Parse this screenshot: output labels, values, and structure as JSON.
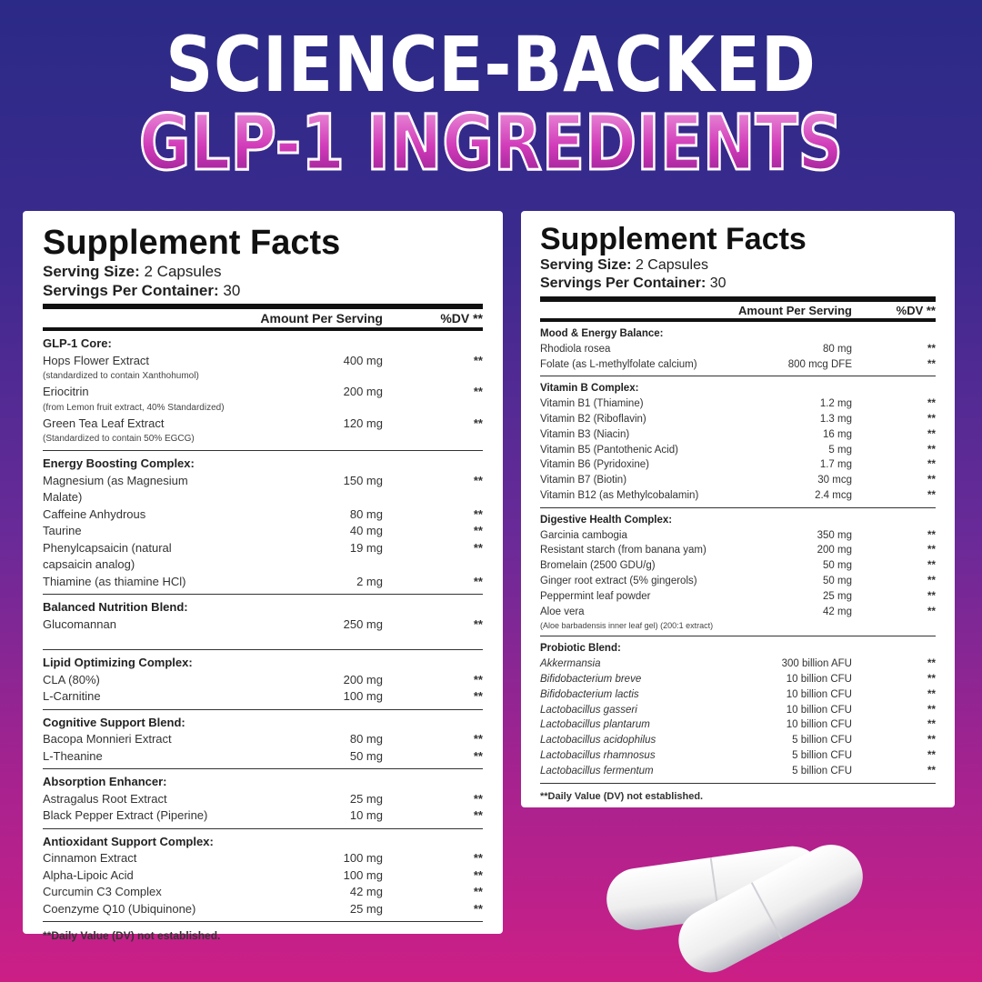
{
  "headline": {
    "line1": "SCIENCE-BACKED",
    "line2": "GLP-1 INGREDIENTS"
  },
  "colors": {
    "bg_top": "#2b2a86",
    "bg_bottom": "#cc1f86",
    "accent": "#d03ab8"
  },
  "panels": [
    {
      "title": "Supplement Facts",
      "serving_size_label": "Serving Size:",
      "serving_size": "2 Capsules",
      "servings_label": "Servings Per Container:",
      "servings": "30",
      "amount_header": "Amount Per Serving",
      "dv_header": "%DV **",
      "sections": [
        {
          "name": "GLP-1 Core:",
          "items": [
            {
              "name": "Hops Flower Extract",
              "amount": "400 mg",
              "dv": "**",
              "sub": "(standardized to contain Xanthohumol)"
            },
            {
              "name": "Eriocitrin",
              "amount": "200 mg",
              "dv": "**",
              "sub": "(from Lemon fruit extract, 40% Standardized)"
            },
            {
              "name": "Green Tea Leaf Extract",
              "amount": "120 mg",
              "dv": "**",
              "sub": "(Standardized to contain 50% EGCG)"
            }
          ]
        },
        {
          "name": "Energy Boosting Complex:",
          "items": [
            {
              "name": "Magnesium (as Magnesium Malate)",
              "amount": "150 mg",
              "dv": "**"
            },
            {
              "name": "Caffeine Anhydrous",
              "amount": "80 mg",
              "dv": "**"
            },
            {
              "name": "Taurine",
              "amount": "40 mg",
              "dv": "**"
            },
            {
              "name": "Phenylcapsaicin (natural capsaicin analog)",
              "amount": "19 mg",
              "dv": "**"
            },
            {
              "name": "Thiamine (as thiamine HCl)",
              "amount": "2 mg",
              "dv": "**"
            }
          ]
        },
        {
          "name": "Balanced Nutrition Blend:",
          "gap": true,
          "items": [
            {
              "name": "Glucomannan",
              "amount": "250 mg",
              "dv": "**"
            }
          ]
        },
        {
          "name": "Lipid Optimizing Complex:",
          "items": [
            {
              "name": "CLA (80%)",
              "amount": "200 mg",
              "dv": "**"
            },
            {
              "name": "L-Carnitine",
              "amount": "100 mg",
              "dv": "**"
            }
          ]
        },
        {
          "name": "Cognitive Support Blend:",
          "items": [
            {
              "name": "Bacopa Monnieri Extract",
              "amount": "80 mg",
              "dv": "**"
            },
            {
              "name": "L-Theanine",
              "amount": "50 mg",
              "dv": "**"
            }
          ]
        },
        {
          "name": "Absorption Enhancer:",
          "items": [
            {
              "name": "Astragalus Root Extract",
              "amount": "25 mg",
              "dv": "**"
            },
            {
              "name": "Black Pepper Extract (Piperine)",
              "amount": "10 mg",
              "dv": "**"
            }
          ]
        },
        {
          "name": "Antioxidant Support Complex:",
          "items": [
            {
              "name": "Cinnamon Extract",
              "amount": "100 mg",
              "dv": "**"
            },
            {
              "name": "Alpha-Lipoic Acid",
              "amount": "100 mg",
              "dv": "**"
            },
            {
              "name": "Curcumin C3 Complex",
              "amount": "42 mg",
              "dv": "**"
            },
            {
              "name": "Coenzyme Q10 (Ubiquinone)",
              "amount": "25 mg",
              "dv": "**"
            }
          ]
        }
      ],
      "footnote": "**Daily Value (DV) not established."
    },
    {
      "title": "Supplement Facts",
      "serving_size_label": "Serving Size:",
      "serving_size": "2 Capsules",
      "servings_label": "Servings Per Container:",
      "servings": "30",
      "amount_header": "Amount Per Serving",
      "dv_header": "%DV **",
      "sections": [
        {
          "name": "Mood & Energy Balance:",
          "items": [
            {
              "name": "Rhodiola rosea",
              "amount": "80 mg",
              "dv": "**"
            },
            {
              "name": "Folate (as L-methylfolate calcium)",
              "amount": "800 mcg DFE",
              "dv": "**"
            }
          ]
        },
        {
          "name": "Vitamin B Complex:",
          "items": [
            {
              "name": "Vitamin B1 (Thiamine)",
              "amount": "1.2 mg",
              "dv": "**"
            },
            {
              "name": "Vitamin B2 (Riboflavin)",
              "amount": "1.3 mg",
              "dv": "**"
            },
            {
              "name": "Vitamin B3 (Niacin)",
              "amount": "16 mg",
              "dv": "**"
            },
            {
              "name": "Vitamin B5 (Pantothenic Acid)",
              "amount": "5 mg",
              "dv": "**"
            },
            {
              "name": "Vitamin B6 (Pyridoxine)",
              "amount": "1.7 mg",
              "dv": "**"
            },
            {
              "name": "Vitamin B7 (Biotin)",
              "amount": "30 mcg",
              "dv": "**"
            },
            {
              "name": "Vitamin B12 (as Methylcobalamin)",
              "amount": "2.4 mcg",
              "dv": "**"
            }
          ]
        },
        {
          "name": "Digestive Health Complex:",
          "items": [
            {
              "name": "Garcinia cambogia",
              "amount": "350 mg",
              "dv": "**"
            },
            {
              "name": "Resistant starch (from banana yam)",
              "amount": "200 mg",
              "dv": "**"
            },
            {
              "name": "Bromelain (2500 GDU/g)",
              "amount": "50 mg",
              "dv": "**"
            },
            {
              "name": "Ginger root extract (5% gingerols)",
              "amount": "50 mg",
              "dv": "**"
            },
            {
              "name": "Peppermint leaf powder",
              "amount": "25 mg",
              "dv": "**"
            },
            {
              "name": "Aloe vera",
              "amount": "42 mg",
              "dv": "**",
              "sub": "(Aloe barbadensis inner leaf gel) (200:1 extract)"
            }
          ]
        },
        {
          "name": "Probiotic Blend:",
          "italic": true,
          "items": [
            {
              "name": "Akkermansia",
              "amount": "300 billion AFU",
              "dv": "**"
            },
            {
              "name": "Bifidobacterium breve",
              "amount": "10 billion CFU",
              "dv": "**"
            },
            {
              "name": "Bifidobacterium lactis",
              "amount": "10 billion CFU",
              "dv": "**"
            },
            {
              "name": "Lactobacillus gasseri",
              "amount": "10 billion CFU",
              "dv": "**"
            },
            {
              "name": "Lactobacillus plantarum",
              "amount": "10 billion CFU",
              "dv": "**"
            },
            {
              "name": "Lactobacillus acidophilus",
              "amount": "5 billion CFU",
              "dv": "**"
            },
            {
              "name": "Lactobacillus rhamnosus",
              "amount": "5 billion CFU",
              "dv": "**"
            },
            {
              "name": "Lactobacillus fermentum",
              "amount": "5 billion CFU",
              "dv": "**"
            }
          ]
        }
      ],
      "footnote": "**Daily Value (DV) not established."
    }
  ],
  "product_image": "capsules-image"
}
